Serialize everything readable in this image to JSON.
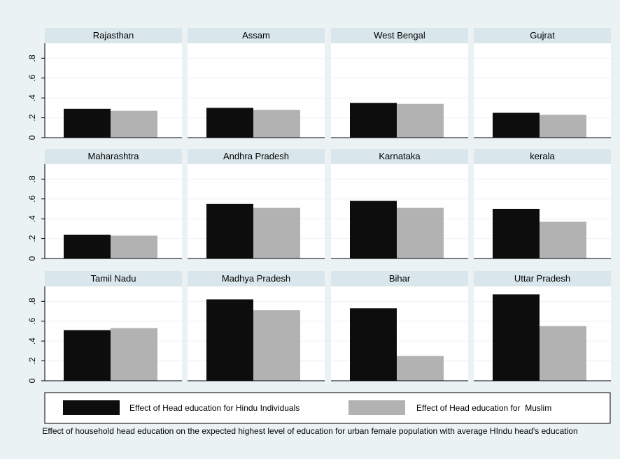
{
  "chart_data": {
    "type": "bar",
    "panels": [
      {
        "title": "Rajasthan",
        "values": [
          0.29,
          0.27
        ]
      },
      {
        "title": "Assam",
        "values": [
          0.3,
          0.28
        ]
      },
      {
        "title": "West Bengal",
        "values": [
          0.35,
          0.34
        ]
      },
      {
        "title": "Gujrat",
        "values": [
          0.25,
          0.23
        ]
      },
      {
        "title": "Maharashtra",
        "values": [
          0.24,
          0.23
        ]
      },
      {
        "title": "Andhra Pradesh",
        "values": [
          0.55,
          0.51
        ]
      },
      {
        "title": "Karnataka",
        "values": [
          0.58,
          0.51
        ]
      },
      {
        "title": "kerala",
        "values": [
          0.5,
          0.37
        ]
      },
      {
        "title": "Tamil Nadu",
        "values": [
          0.51,
          0.53
        ]
      },
      {
        "title": "Madhya Pradesh",
        "values": [
          0.82,
          0.71
        ]
      },
      {
        "title": "Bihar",
        "values": [
          0.73,
          0.25
        ]
      },
      {
        "title": "Uttar Pradesh",
        "values": [
          0.87,
          0.55
        ]
      }
    ],
    "series": [
      {
        "name": "Effect of Head education for Hindu Individuals",
        "color": "#0d0d0d"
      },
      {
        "name": "Effect of Head education for  Muslim",
        "color": "#b2b2b2"
      }
    ],
    "ylim": [
      0,
      0.95
    ],
    "yticks": [
      0,
      0.2,
      0.4,
      0.6,
      0.8
    ],
    "ytick_labels": [
      "0",
      ".2",
      ".4",
      ".6",
      ".8"
    ],
    "grid": true,
    "legend_position": "bottom",
    "caption": "Effect of household head education  on the expected highest level of education for urban female population with average HIndu head's education"
  }
}
